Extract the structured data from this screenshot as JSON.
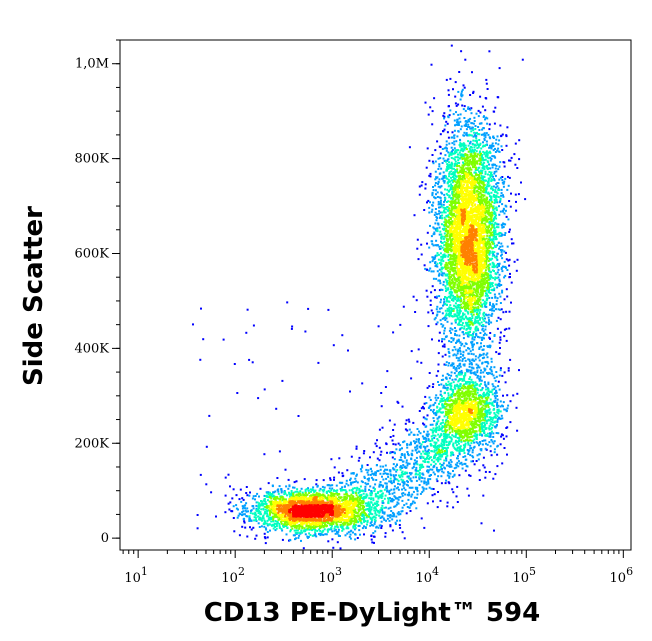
{
  "chart_data": {
    "type": "scatter",
    "title": "",
    "xlabel": "CD13 PE-DyLight™ 594",
    "ylabel": "Side Scatter",
    "x_scale": "log",
    "xlim": [
      6.5,
      1200000
    ],
    "ylim": [
      -25000,
      1050000
    ],
    "x_ticks": [
      {
        "value": 10,
        "base": "10",
        "exp": "1"
      },
      {
        "value": 100,
        "base": "10",
        "exp": "2"
      },
      {
        "value": 1000,
        "base": "10",
        "exp": "3"
      },
      {
        "value": 10000,
        "base": "10",
        "exp": "4"
      },
      {
        "value": 100000,
        "base": "10",
        "exp": "5"
      },
      {
        "value": 1000000,
        "base": "10",
        "exp": "6"
      }
    ],
    "y_ticks": [
      {
        "value": 0,
        "label": "0"
      },
      {
        "value": 200000,
        "label": "200K"
      },
      {
        "value": 400000,
        "label": "400K"
      },
      {
        "value": 600000,
        "label": "600K"
      },
      {
        "value": 800000,
        "label": "800K"
      },
      {
        "value": 1000000,
        "label": "1,0M"
      }
    ],
    "grid": false,
    "legend": "none",
    "color_scale": [
      "#0000ff",
      "#00a0ff",
      "#00ffc0",
      "#80ff00",
      "#ffff00",
      "#ff8000",
      "#ff0000"
    ],
    "populations": [
      {
        "name": "",
        "x_center": 600,
        "y_center": 60000,
        "x_spread_log": 0.3,
        "y_spread": 22000,
        "events": 2600
      },
      {
        "name": "",
        "x_center": 25000,
        "y_center": 640000,
        "x_spread_log": 0.17,
        "y_spread": 120000,
        "events": 5000
      },
      {
        "name": "",
        "x_center": 25000,
        "y_center": 270000,
        "x_spread_log": 0.17,
        "y_spread": 45000,
        "events": 1300
      }
    ]
  }
}
